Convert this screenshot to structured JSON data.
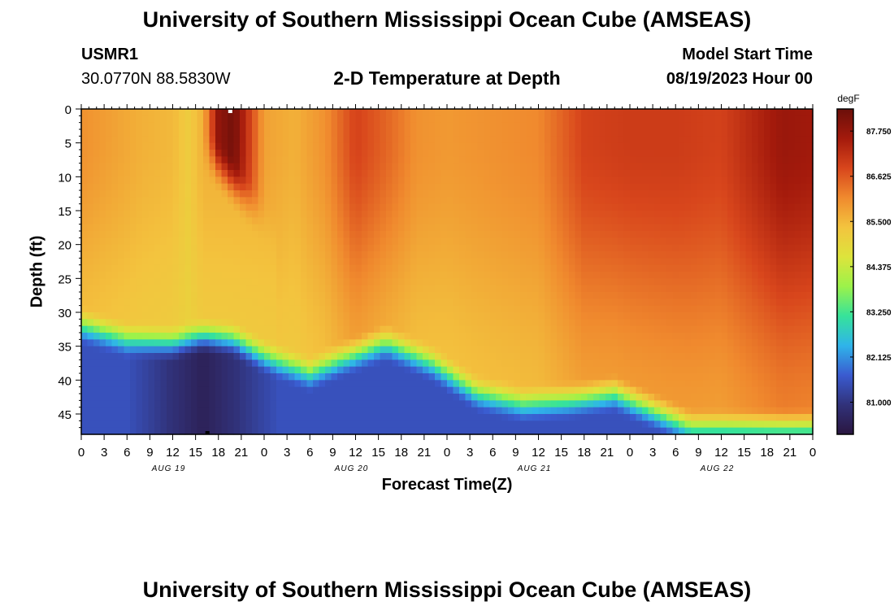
{
  "page": {
    "title_top": "University of Southern Mississippi Ocean Cube (AMSEAS)",
    "title_bottom": "University of Southern Mississippi Ocean Cube (AMSEAS)",
    "station_id": "USMR1",
    "station_coords": "30.0770N  88.5830W",
    "model_start_label": "Model Start Time",
    "model_start_value": "08/19/2023 Hour 00"
  },
  "colors": {
    "stops": [
      "#2a1640",
      "#31327a",
      "#3a5bd0",
      "#2fb4ea",
      "#36e39a",
      "#9cf24a",
      "#dde43c",
      "#f3c43e",
      "#f08a2e",
      "#d8461c",
      "#a41a0c",
      "#6b0f0a"
    ]
  },
  "chart_data": {
    "type": "heatmap",
    "title": "2-D Temperature at Depth",
    "xlabel": "Forecast Time(Z)",
    "ylabel": "Depth (ft)",
    "x_ticks": [
      "0",
      "3",
      "6",
      "9",
      "12",
      "15",
      "18",
      "21",
      "0",
      "3",
      "6",
      "9",
      "12",
      "15",
      "18",
      "21",
      "0",
      "3",
      "6",
      "9",
      "12",
      "15",
      "18",
      "21",
      "0",
      "3",
      "6",
      "9",
      "12",
      "15",
      "18",
      "21",
      "0"
    ],
    "day_labels": [
      "AUG 19",
      "AUG 20",
      "AUG 21",
      "AUG 22"
    ],
    "y_ticks": [
      "0",
      "5",
      "10",
      "15",
      "20",
      "25",
      "30",
      "35",
      "40",
      "45"
    ],
    "y_range_ft": [
      0,
      48
    ],
    "x_range_hours": [
      0,
      96
    ],
    "colorbar": {
      "unit": "degF",
      "range": [
        80.2,
        88.3
      ],
      "tick_values": [
        81.0,
        82.125,
        83.25,
        84.375,
        85.5,
        86.625,
        87.75
      ],
      "tick_labels": [
        "81.000",
        "82.125",
        "83.250",
        "84.375",
        "85.500",
        "86.625",
        "87.750"
      ]
    },
    "surface_temp_profile": {
      "hours": [
        0,
        4,
        8,
        12,
        14,
        16,
        18,
        20,
        22,
        24,
        28,
        32,
        36,
        40,
        44,
        48,
        54,
        60,
        66,
        72,
        78,
        84,
        88,
        92,
        96
      ],
      "degF": [
        86.0,
        85.8,
        85.6,
        85.5,
        85.2,
        85.6,
        87.8,
        88.2,
        87.0,
        85.8,
        85.6,
        86.0,
        86.9,
        86.5,
        86.0,
        85.9,
        86.0,
        86.1,
        86.9,
        87.0,
        87.0,
        86.9,
        87.3,
        87.7,
        87.6
      ]
    },
    "mixed_layer_depth_ft": {
      "hours": [
        0,
        6,
        12,
        16,
        20,
        24,
        30,
        34,
        40,
        46,
        52,
        58,
        64,
        70,
        76,
        80,
        84,
        88,
        96
      ],
      "depth": [
        33,
        35,
        35.5,
        34.5,
        35,
        37.5,
        40,
        38,
        35.5,
        38.5,
        43,
        44.5,
        44,
        43,
        46,
        48,
        48,
        48,
        48
      ]
    },
    "deep_temp_degF": 81.5
  }
}
